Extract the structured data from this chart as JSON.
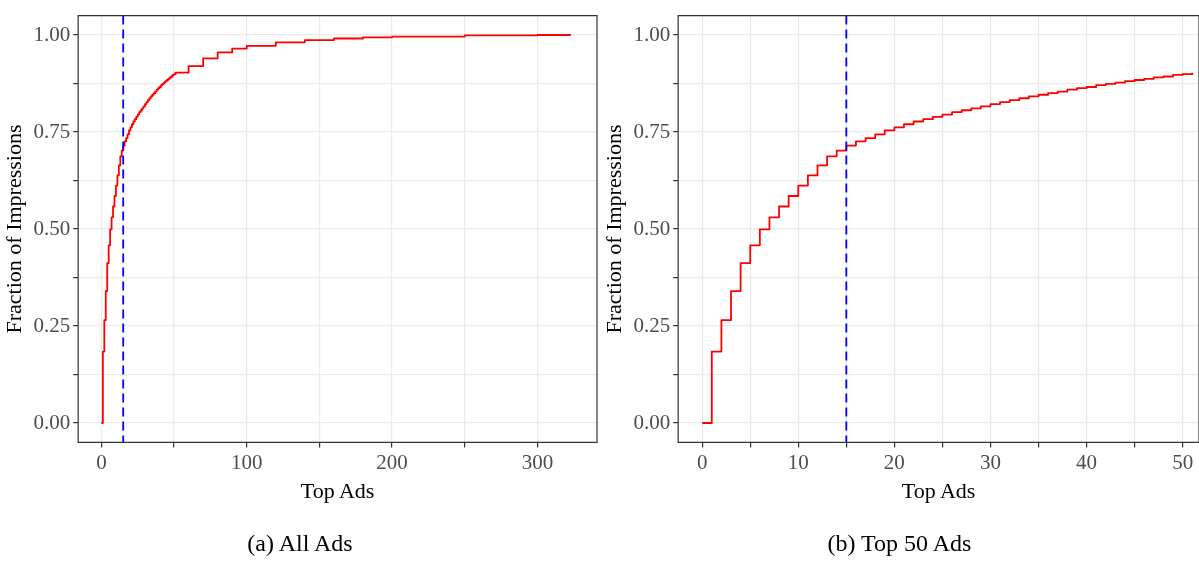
{
  "chart_data": [
    {
      "type": "step",
      "title": "(a) All Ads",
      "xlabel": "Top Ads",
      "ylabel": "Fraction of Impressions",
      "xlim": [
        -16,
        341
      ],
      "ylim": [
        -0.05,
        1.05
      ],
      "xticks": [
        0,
        {
          "value": 50,
          "label": null
        },
        100,
        {
          "value": 150,
          "label": null
        },
        200,
        {
          "value": 250,
          "label": null
        },
        300
      ],
      "yticks": [
        {
          "value": 0,
          "label": "0.00"
        },
        {
          "value": 0.125,
          "label": null
        },
        {
          "value": 0.25,
          "label": "0.25"
        },
        {
          "value": 0.375,
          "label": null
        },
        {
          "value": 0.5,
          "label": "0.50"
        },
        {
          "value": 0.625,
          "label": null
        },
        {
          "value": 0.75,
          "label": "0.75"
        },
        {
          "value": 0.875,
          "label": null
        },
        {
          "value": 1,
          "label": "1.00"
        }
      ],
      "grid": true,
      "legend": false,
      "ref_lines": [
        {
          "axis": "x",
          "value": 15,
          "color": "#0000ff",
          "line_style": "dashed"
        }
      ],
      "series": [
        {
          "color": "#ff0000",
          "x": [
            0,
            1,
            2,
            3,
            4,
            5,
            6,
            7,
            8,
            9,
            10,
            11,
            12,
            13,
            14,
            15,
            16,
            17,
            18,
            19,
            20,
            21,
            22,
            23,
            24,
            25,
            26,
            27,
            28,
            29,
            30,
            31,
            32,
            33,
            34,
            35,
            36,
            37,
            38,
            39,
            40,
            41,
            42,
            43,
            44,
            45,
            46,
            47,
            48,
            49,
            50,
            51,
            60,
            70,
            80,
            90,
            100,
            120,
            140,
            160,
            180,
            200,
            250,
            300,
            323
          ],
          "values": [
            0,
            0.184,
            0.265,
            0.34,
            0.412,
            0.458,
            0.499,
            0.53,
            0.558,
            0.585,
            0.612,
            0.638,
            0.664,
            0.687,
            0.702,
            0.715,
            0.726,
            0.734,
            0.744,
            0.754,
            0.762,
            0.77,
            0.777,
            0.783,
            0.789,
            0.795,
            0.801,
            0.806,
            0.811,
            0.816,
            0.822,
            0.827,
            0.832,
            0.837,
            0.842,
            0.846,
            0.85,
            0.854,
            0.859,
            0.863,
            0.866,
            0.871,
            0.874,
            0.877,
            0.881,
            0.884,
            0.887,
            0.891,
            0.893,
            0.897,
            0.899,
            0.903,
            0.92,
            0.94,
            0.955,
            0.965,
            0.972,
            0.981,
            0.987,
            0.991,
            0.994,
            0.996,
            0.999,
            1,
            1
          ]
        }
      ]
    },
    {
      "type": "step",
      "title": "(b) Top 50 Ads",
      "xlabel": "Top Ads",
      "ylabel": "Fraction of Impressions",
      "xlim": [
        -2.5,
        51.7
      ],
      "ylim": [
        -0.05,
        1.05
      ],
      "xticks": [
        0,
        {
          "value": 5,
          "label": null
        },
        10,
        {
          "value": 15,
          "label": null
        },
        20,
        {
          "value": 25,
          "label": null
        },
        30,
        {
          "value": 35,
          "label": null
        },
        40,
        {
          "value": 45,
          "label": null
        },
        50
      ],
      "yticks": [
        {
          "value": 0,
          "label": "0.00"
        },
        {
          "value": 0.125,
          "label": null
        },
        {
          "value": 0.25,
          "label": "0.25"
        },
        {
          "value": 0.375,
          "label": null
        },
        {
          "value": 0.5,
          "label": "0.50"
        },
        {
          "value": 0.625,
          "label": null
        },
        {
          "value": 0.75,
          "label": "0.75"
        },
        {
          "value": 0.875,
          "label": null
        },
        {
          "value": 1,
          "label": "1.00"
        }
      ],
      "grid": true,
      "legend": false,
      "ref_lines": [
        {
          "axis": "x",
          "value": 15,
          "color": "#0000ff",
          "line_style": "dashed"
        }
      ],
      "series": [
        {
          "color": "#ff0000",
          "x": [
            0,
            1,
            2,
            3,
            4,
            5,
            6,
            7,
            8,
            9,
            10,
            11,
            12,
            13,
            14,
            15,
            16,
            17,
            18,
            19,
            20,
            21,
            22,
            23,
            24,
            25,
            26,
            27,
            28,
            29,
            30,
            31,
            32,
            33,
            34,
            35,
            36,
            37,
            38,
            39,
            40,
            41,
            42,
            43,
            44,
            45,
            46,
            47,
            48,
            49,
            50,
            51
          ],
          "values": [
            0,
            0.184,
            0.265,
            0.34,
            0.412,
            0.458,
            0.499,
            0.53,
            0.558,
            0.585,
            0.612,
            0.638,
            0.664,
            0.687,
            0.702,
            0.715,
            0.726,
            0.734,
            0.744,
            0.754,
            0.762,
            0.77,
            0.777,
            0.783,
            0.789,
            0.795,
            0.801,
            0.806,
            0.811,
            0.816,
            0.822,
            0.827,
            0.832,
            0.837,
            0.842,
            0.846,
            0.85,
            0.854,
            0.859,
            0.863,
            0.866,
            0.871,
            0.874,
            0.877,
            0.881,
            0.884,
            0.887,
            0.891,
            0.893,
            0.897,
            0.899,
            0.903
          ]
        }
      ]
    }
  ]
}
